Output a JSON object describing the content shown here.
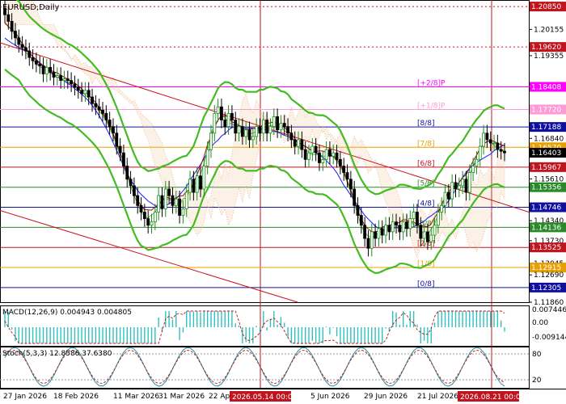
{
  "symbol_label": "EURUSD,Daily",
  "colors": {
    "bull": "#1a8f1a",
    "bear": "#000000",
    "bollinger": "#44bb22",
    "ma_blue": "#1a1aff",
    "ma_red": "#a01010",
    "channel": "#c8141e",
    "murrey_blue": "#1010a0",
    "murrey_red": "#c0141e",
    "murrey_orange": "#e8a000",
    "murrey_green": "#2a8a2a",
    "murrey_pink": "#ff00ff",
    "sar": "#2fbf2f",
    "cloud": "#e8b07a",
    "macd_hist": "#30c0c0",
    "macd_signal": "#c01010",
    "stoch_main": "#2090a0",
    "stoch_signal": "#c01010"
  },
  "price_axis": {
    "ticks": [
      "1.20850",
      "1.20155",
      "1.19620",
      "1.19355",
      "1.18408",
      "1.17720",
      "1.17188",
      "1.16840",
      "1.16570",
      "1.16403",
      "1.15967",
      "1.15610",
      "1.15356",
      "1.14746",
      "1.14340",
      "1.14136",
      "1.13730",
      "1.13525",
      "1.13045",
      "1.12915",
      "1.12690",
      "1.12305",
      "1.11860"
    ],
    "highlighted": [
      "1.20850",
      "1.19620",
      "1.18408",
      "1.17720",
      "1.17188",
      "1.16570",
      "1.16403",
      "1.15967",
      "1.15356",
      "1.14746",
      "1.14136",
      "1.13525",
      "1.12915",
      "1.12305"
    ]
  },
  "murrey_labels": [
    "[+2/8]P",
    "[+1/8]P",
    "[8/8]",
    "[7/8]",
    "[6/8]",
    "[5/8]",
    "[4/8]",
    "[3/8]",
    "[2/8]",
    "[1/8]",
    "[0/8]"
  ],
  "time_axis": {
    "labels": [
      "27 Jan 2026",
      "18 Feb 2026",
      "11 Mar 2026",
      "31 Mar 2026",
      "22 Apr",
      "5 Jun 2026",
      "29 Jun 2026",
      "21 Jul 2026"
    ],
    "highlighted": [
      "2026.05.14 00:00",
      "2026.08.21 00:00"
    ]
  },
  "macd": {
    "label": "MACD(12,26,9) 0.004943 0.004805",
    "ticks": [
      "0.007446",
      "0.00",
      "-0.009144"
    ]
  },
  "stoch": {
    "label": "Stoch(5,3,3) 12.8586 37.6380",
    "ticks": [
      "80",
      "20"
    ]
  },
  "chart_data": {
    "type": "candlestick",
    "symbol": "EURUSD",
    "timeframe": "Daily",
    "ylim": [
      1.1186,
      1.2095
    ],
    "murrey_levels": [
      {
        "label": "[+2/8]P",
        "price": 1.18408
      },
      {
        "label": "[+1/8]P",
        "price": 1.1772
      },
      {
        "label": "[8/8]",
        "price": 1.17188
      },
      {
        "label": "[7/8]",
        "price": 1.1657
      },
      {
        "label": "[6/8]",
        "price": 1.15967
      },
      {
        "label": "[5/8]",
        "price": 1.15356
      },
      {
        "label": "[4/8]",
        "price": 1.14746
      },
      {
        "label": "[3/8]",
        "price": 1.14136
      },
      {
        "label": "[2/8]",
        "price": 1.13525
      },
      {
        "label": "[1/8]",
        "price": 1.12915
      },
      {
        "label": "[0/8]",
        "price": 1.12305
      }
    ],
    "horizontal_levels": [
      1.2085,
      1.1962,
      1.184,
      1.17188,
      1.164
    ],
    "close_series": [
      1.206,
      1.204,
      1.201,
      1.199,
      1.197,
      1.196,
      1.195,
      1.193,
      1.192,
      1.191,
      1.1905,
      1.188,
      1.19,
      1.1885,
      1.187,
      1.1875,
      1.186,
      1.1865,
      1.186,
      1.185,
      1.184,
      1.183,
      1.182,
      1.183,
      1.181,
      1.179,
      1.178,
      1.177,
      1.176,
      1.174,
      1.172,
      1.17,
      1.166,
      1.164,
      1.16,
      1.156,
      1.154,
      1.151,
      1.148,
      1.146,
      1.144,
      1.142,
      1.143,
      1.146,
      1.151,
      1.147,
      1.153,
      1.151,
      1.148,
      1.15,
      1.145,
      1.147,
      1.152,
      1.156,
      1.152,
      1.157,
      1.153,
      1.16,
      1.165,
      1.17,
      1.176,
      1.178,
      1.174,
      1.172,
      1.176,
      1.174,
      1.17,
      1.172,
      1.169,
      1.171,
      1.168,
      1.169,
      1.172,
      1.17,
      1.174,
      1.17,
      1.172,
      1.175,
      1.171,
      1.173,
      1.172,
      1.17,
      1.168,
      1.166,
      1.168,
      1.165,
      1.162,
      1.164,
      1.166,
      1.164,
      1.161,
      1.162,
      1.165,
      1.163,
      1.164,
      1.162,
      1.16,
      1.158,
      1.156,
      1.153,
      1.148,
      1.145,
      1.142,
      1.138,
      1.135,
      1.14,
      1.138,
      1.141,
      1.139,
      1.142,
      1.14,
      1.143,
      1.142,
      1.14,
      1.143,
      1.141,
      1.144,
      1.146,
      1.142,
      1.138,
      1.14,
      1.137,
      1.139,
      1.142,
      1.146,
      1.148,
      1.152,
      1.15,
      1.155,
      1.153,
      1.154,
      1.156,
      1.152,
      1.158,
      1.16,
      1.162,
      1.166,
      1.17,
      1.168,
      1.167,
      1.167,
      1.165,
      1.1645,
      1.164
    ]
  }
}
